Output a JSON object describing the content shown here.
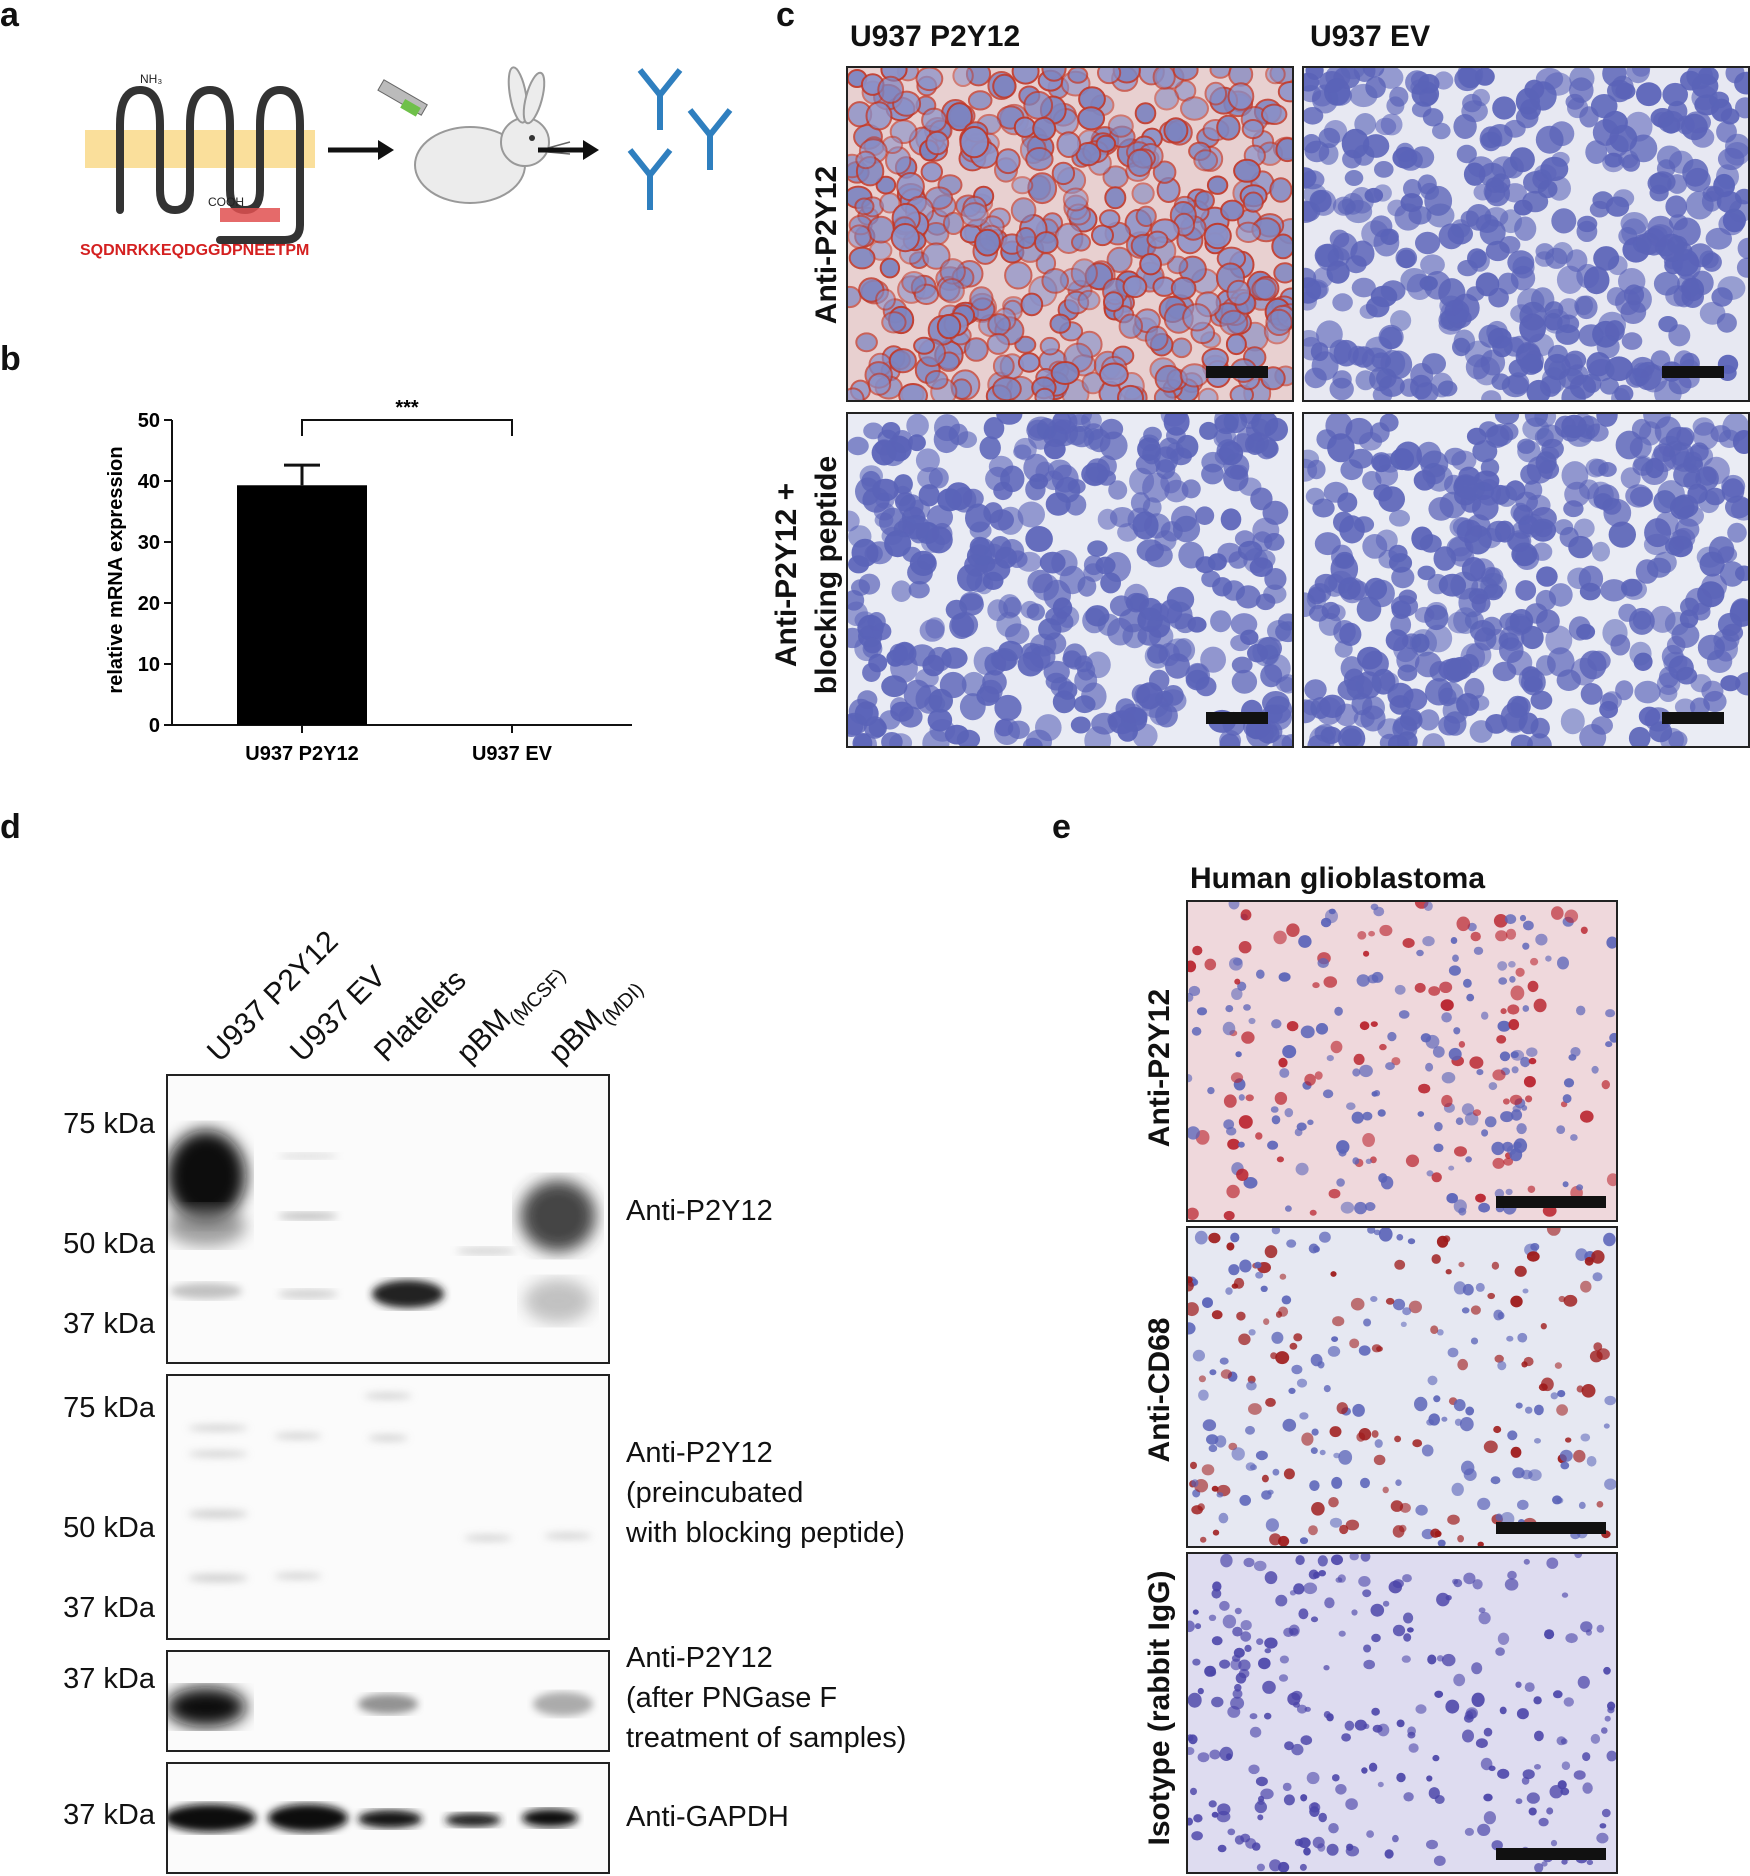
{
  "panels": {
    "a": {
      "letter": "a",
      "nh3": "NH₃",
      "cooh": "COOH",
      "peptide": "SQDNRKKEQDGGDPNEETPM"
    },
    "b": {
      "letter": "b",
      "significance": "***"
    },
    "c": {
      "letter": "c",
      "col_labels": [
        "U937 P2Y12",
        "U937 EV"
      ],
      "row_labels": [
        "Anti-P2Y12",
        "Anti-P2Y12 +",
        "blocking peptide"
      ]
    },
    "d": {
      "letter": "d",
      "lanes": [
        "U937 P2Y12",
        "U937 EV",
        "Platelets",
        "pBM",
        "(MCSF)",
        "pBM",
        "(MDI)"
      ],
      "blot1_kda": [
        "75 kDa",
        "50 kDa",
        "37 kDa"
      ],
      "blot1_label": "Anti-P2Y12",
      "blot2_kda": [
        "75 kDa",
        "50 kDa",
        "37 kDa"
      ],
      "blot2_label": [
        "Anti-P2Y12",
        "(preincubated",
        "with blocking peptide)"
      ],
      "blot3_kda": [
        "37 kDa"
      ],
      "blot3_label": [
        "Anti-P2Y12",
        "(after PNGase F",
        "treatment of samples)"
      ],
      "blot4_kda": [
        "37 kDa"
      ],
      "blot4_label": "Anti-GAPDH"
    },
    "e": {
      "letter": "e",
      "title": "Human glioblastoma",
      "row_labels": [
        "Anti-P2Y12",
        "Anti-CD68",
        "Isotype (rabbit IgG)"
      ]
    }
  },
  "chart_data": {
    "type": "bar",
    "categories": [
      "U937 P2Y12",
      "U937 EV"
    ],
    "values": [
      39.3,
      0
    ],
    "errors": [
      3.3,
      0
    ],
    "title": "",
    "xlabel": "",
    "ylabel": "relative mRNA expression",
    "ylim": [
      0,
      50
    ],
    "yticks": [
      0,
      10,
      20,
      30,
      40,
      50
    ],
    "bar_color": "#000000",
    "significance": {
      "between": [
        "U937 P2Y12",
        "U937 EV"
      ],
      "label": "***"
    }
  },
  "colors": {
    "membrane": "#f9d98a",
    "peptide_red": "#d42020",
    "antibody_blue": "#2f7fbf",
    "stain_nucleus": "#5a63b8",
    "stain_red": "#c0392b"
  }
}
